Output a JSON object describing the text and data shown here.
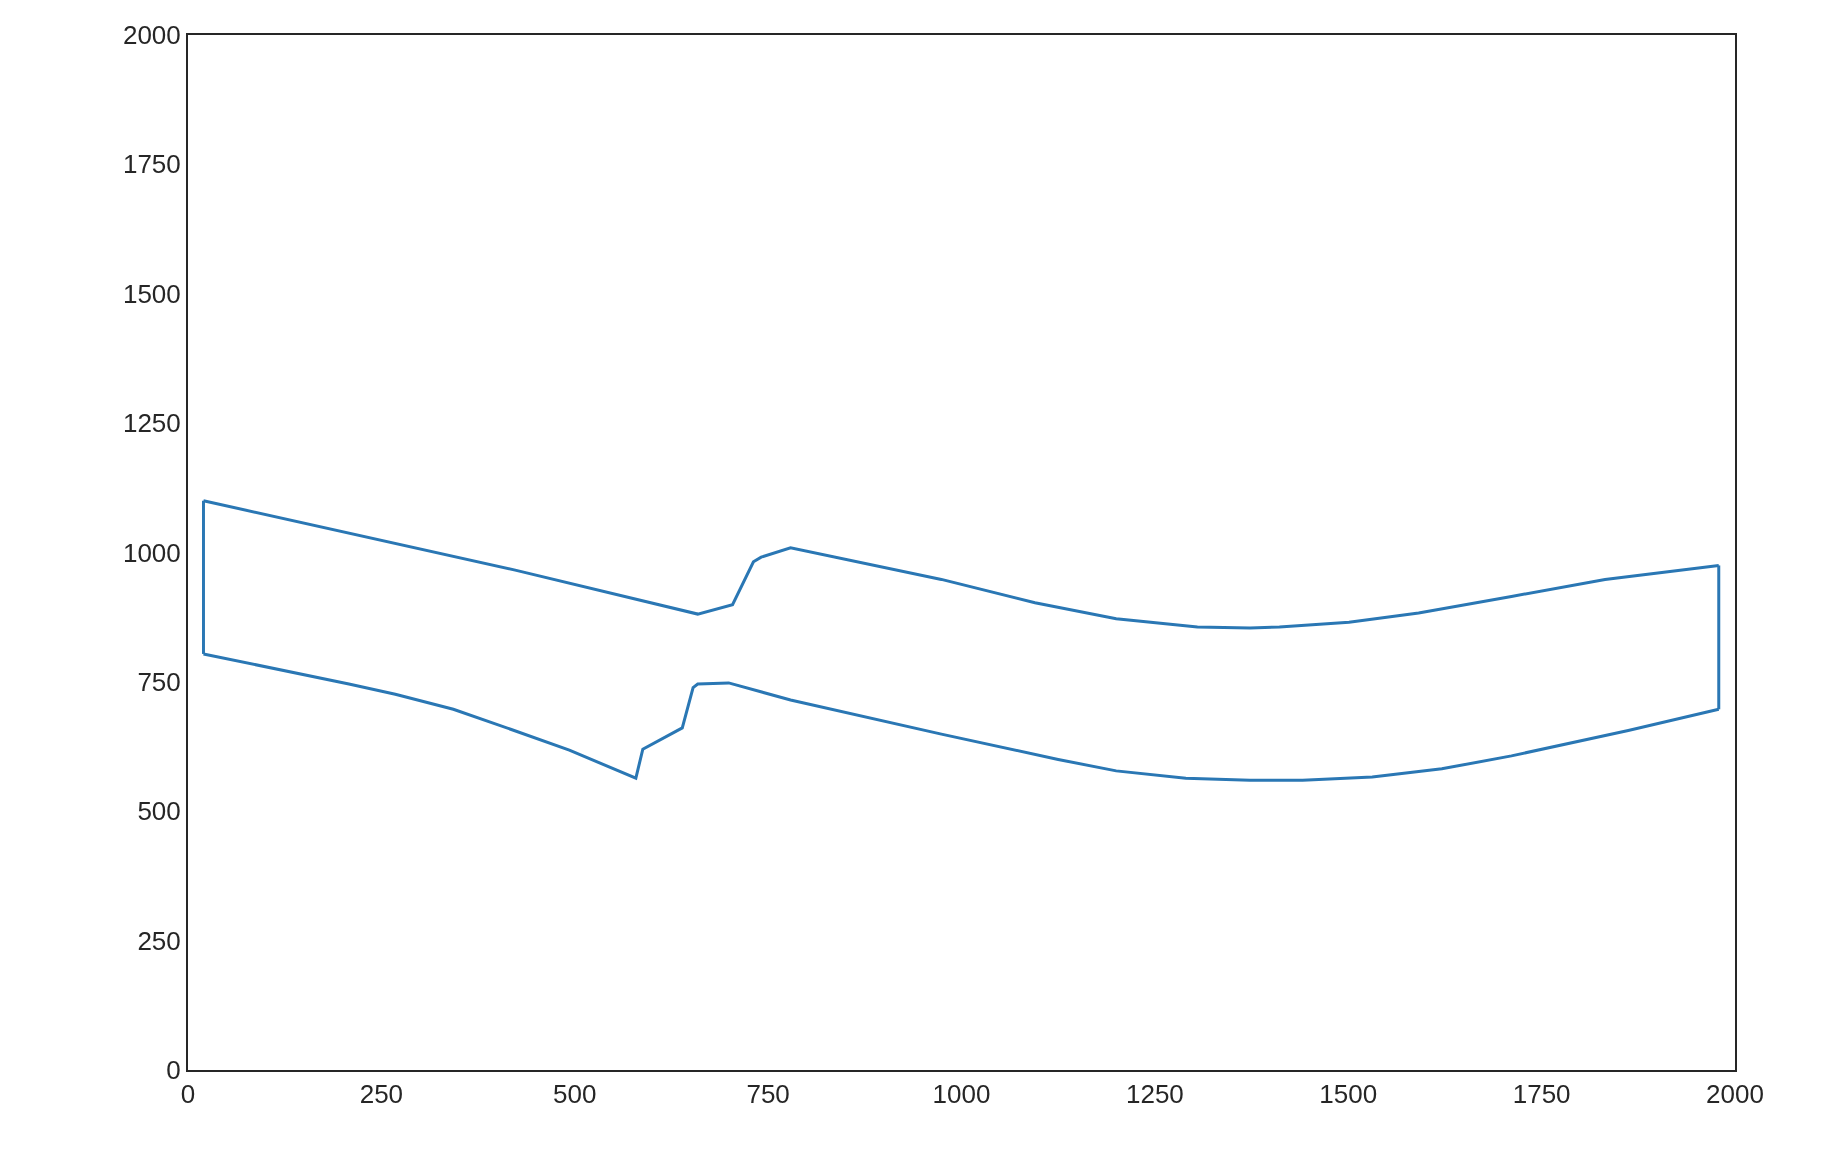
{
  "chart_data": {
    "type": "line",
    "color": "#2a77b4",
    "series": [
      {
        "x": [
          20,
          423,
          659,
          704,
          731,
          741,
          779,
          974,
          1095,
          1200,
          1305,
          1373,
          1411,
          1501,
          1591,
          1711,
          1832,
          1979
        ],
        "values": [
          1100,
          966,
          881,
          899,
          982,
          991,
          1009,
          948,
          903,
          872,
          856,
          854,
          856,
          865,
          883,
          915,
          948,
          975
        ]
      },
      {
        "x": [
          1979,
          1979
        ],
        "values": [
          975,
          697
        ]
      },
      {
        "x": [
          20,
          208,
          268,
          343,
          418,
          493,
          579,
          588,
          639,
          653,
          659,
          699,
          779,
          974,
          1125,
          1200,
          1290,
          1373,
          1441,
          1531,
          1621,
          1711,
          1862,
          1979
        ],
        "values": [
          804,
          746,
          726,
          697,
          658,
          618,
          564,
          620,
          661,
          739,
          746,
          748,
          715,
          649,
          600,
          578,
          564,
          560,
          560,
          566,
          582,
          607,
          656,
          697
        ]
      },
      {
        "x": [
          20,
          20
        ],
        "values": [
          804,
          1100
        ]
      }
    ],
    "xlim": [
      0,
      2000
    ],
    "ylim": [
      0,
      2000
    ],
    "xticks": [
      0,
      250,
      500,
      750,
      1000,
      1250,
      1500,
      1750,
      2000
    ],
    "yticks": [
      0,
      250,
      500,
      750,
      1000,
      1250,
      1500,
      1750,
      2000
    ],
    "grid": false,
    "marker": "none",
    "line_style": "solid"
  }
}
